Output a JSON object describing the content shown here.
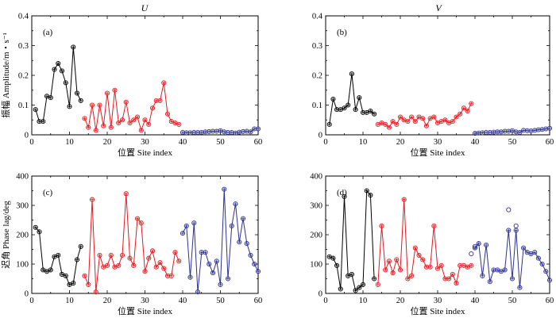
{
  "figure": {
    "column_titles": [
      "U",
      "V"
    ],
    "series_colors": {
      "s1": "#000000",
      "s2": "#e8191f",
      "s3": "#2d3190"
    }
  },
  "chart_data": [
    {
      "type": "line",
      "panel": "(a)",
      "column_title": "U",
      "xlabel": "位置 Site index",
      "ylabel": "振幅 Amplitude/m・s⁻¹",
      "xlim": [
        0,
        60
      ],
      "ylim": [
        0,
        0.4
      ],
      "xticks": [
        0,
        10,
        20,
        30,
        40,
        50,
        60
      ],
      "yticks": [
        0,
        0.1,
        0.2,
        0.3,
        0.4
      ],
      "yticklabels": [
        "0",
        "0.1",
        "0.2",
        "0.3",
        "0.4"
      ],
      "series": [
        {
          "x": [
            1,
            2,
            3,
            4,
            5,
            6,
            7,
            8,
            9,
            10,
            11,
            12,
            13
          ],
          "y": [
            0.085,
            0.045,
            0.045,
            0.13,
            0.125,
            0.22,
            0.24,
            0.215,
            0.175,
            0.095,
            0.295,
            0.14,
            0.115
          ]
        },
        {
          "x": [
            14,
            15,
            16,
            17,
            18,
            19,
            20,
            21,
            22,
            23,
            24,
            25,
            26,
            27,
            28,
            29,
            30,
            31,
            32,
            33,
            34,
            35,
            36,
            37,
            38,
            39
          ],
          "y": [
            0.055,
            0.025,
            0.1,
            0.015,
            0.1,
            0.03,
            0.14,
            0.025,
            0.15,
            0.04,
            0.05,
            0.11,
            0.04,
            0.05,
            0.06,
            0.015,
            0.05,
            0.035,
            0.09,
            0.115,
            0.115,
            0.175,
            0.07,
            0.045,
            0.04,
            0.035
          ]
        },
        {
          "x": [
            40,
            41,
            42,
            43,
            44,
            45,
            46,
            47,
            48,
            49,
            50,
            51,
            52,
            53,
            54,
            55,
            56,
            57,
            58,
            59,
            60
          ],
          "y": [
            0.008,
            0.007,
            0.007,
            0.008,
            0.008,
            0.008,
            0.01,
            0.011,
            0.012,
            0.012,
            0.014,
            0.01,
            0.008,
            0.008,
            0.006,
            0.009,
            0.011,
            0.012,
            0.01,
            0.02,
            0.02
          ]
        }
      ]
    },
    {
      "type": "line",
      "panel": "(b)",
      "column_title": "V",
      "xlabel": "位置 Site index",
      "ylabel": "",
      "xlim": [
        0,
        60
      ],
      "ylim": [
        0,
        0.4
      ],
      "xticks": [
        0,
        10,
        20,
        30,
        40,
        50,
        60
      ],
      "yticks": [
        0,
        0.1,
        0.2,
        0.3,
        0.4
      ],
      "yticklabels": [
        "0",
        "0.1",
        "0.2",
        "0.3",
        "0.4"
      ],
      "series": [
        {
          "x": [
            1,
            2,
            3,
            4,
            5,
            6,
            7,
            8,
            9,
            10,
            11,
            12,
            13
          ],
          "y": [
            0.035,
            0.12,
            0.085,
            0.085,
            0.09,
            0.1,
            0.205,
            0.085,
            0.125,
            0.075,
            0.075,
            0.08,
            0.07
          ]
        },
        {
          "x": [
            14,
            15,
            16,
            17,
            18,
            19,
            20,
            21,
            22,
            23,
            24,
            25,
            26,
            27,
            28,
            29,
            30,
            31,
            32,
            33,
            34,
            35,
            36,
            37,
            38,
            39
          ],
          "y": [
            0.035,
            0.04,
            0.035,
            0.025,
            0.045,
            0.035,
            0.06,
            0.05,
            0.045,
            0.06,
            0.045,
            0.06,
            0.055,
            0.03,
            0.055,
            0.06,
            0.04,
            0.045,
            0.05,
            0.04,
            0.045,
            0.06,
            0.07,
            0.09,
            0.08,
            0.105
          ]
        },
        {
          "x": [
            40,
            41,
            42,
            43,
            44,
            45,
            46,
            47,
            48,
            49,
            50,
            51,
            52,
            53,
            54,
            55,
            56,
            57,
            58,
            59,
            60
          ],
          "y": [
            0.005,
            0.006,
            0.007,
            0.008,
            0.008,
            0.009,
            0.01,
            0.01,
            0.012,
            0.012,
            0.014,
            0.01,
            0.008,
            0.015,
            0.014,
            0.013,
            0.015,
            0.017,
            0.018,
            0.02,
            0.022
          ]
        }
      ]
    },
    {
      "type": "line",
      "panel": "(c)",
      "xlabel": "位置 Site index",
      "ylabel": "迟角 Phase lag/deg",
      "xlim": [
        0,
        60
      ],
      "ylim": [
        0,
        400
      ],
      "xticks": [
        0,
        10,
        20,
        30,
        40,
        50,
        60
      ],
      "yticks": [
        0,
        100,
        200,
        300,
        400
      ],
      "yticklabels": [
        "0",
        "100",
        "200",
        "300",
        "400"
      ],
      "series": [
        {
          "x": [
            1,
            2,
            3,
            4,
            5,
            6,
            7,
            8,
            9,
            10,
            11,
            12,
            13
          ],
          "y": [
            225,
            210,
            80,
            75,
            80,
            125,
            130,
            65,
            60,
            30,
            35,
            115,
            160
          ]
        },
        {
          "x": [
            14,
            15,
            16,
            17,
            18,
            19,
            20,
            21,
            22,
            23,
            24,
            25,
            26,
            27,
            28,
            29,
            30,
            31,
            32,
            33,
            34,
            35,
            36,
            37,
            38,
            39
          ],
          "y": [
            60,
            30,
            320,
            5,
            130,
            90,
            95,
            130,
            90,
            95,
            130,
            340,
            120,
            95,
            255,
            240,
            75,
            120,
            145,
            90,
            105,
            85,
            60,
            60,
            140,
            110
          ]
        },
        {
          "x": [
            40,
            41,
            42,
            43,
            44,
            45,
            46,
            47,
            48,
            49,
            50,
            51,
            52,
            53,
            54,
            55,
            56,
            57,
            58,
            59,
            60
          ],
          "y": [
            205,
            230,
            55,
            240,
            5,
            140,
            140,
            100,
            70,
            110,
            30,
            355,
            50,
            230,
            305,
            175,
            255,
            170,
            130,
            100,
            75
          ]
        }
      ]
    },
    {
      "type": "line",
      "panel": "(d)",
      "xlabel": "位置 Site index",
      "ylabel": "",
      "xlim": [
        0,
        60
      ],
      "ylim": [
        0,
        400
      ],
      "xticks": [
        0,
        10,
        20,
        30,
        40,
        50,
        60
      ],
      "yticks": [
        0,
        100,
        200,
        300,
        400
      ],
      "yticklabels": [
        "0",
        "100",
        "200",
        "300",
        "400"
      ],
      "series": [
        {
          "x": [
            1,
            2,
            3,
            4,
            5,
            6,
            7,
            8,
            9,
            10,
            11,
            12,
            13
          ],
          "y": [
            125,
            120,
            95,
            15,
            330,
            60,
            65,
            10,
            20,
            30,
            350,
            335,
            50
          ]
        },
        {
          "x": [
            14,
            15,
            16,
            17,
            18,
            19,
            20,
            21,
            22,
            23,
            24,
            25,
            26,
            27,
            28,
            29,
            30,
            31,
            32,
            33,
            34,
            35,
            36,
            37,
            38,
            39
          ],
          "y": [
            30,
            230,
            80,
            110,
            70,
            115,
            80,
            320,
            50,
            60,
            155,
            130,
            115,
            90,
            90,
            230,
            85,
            95,
            50,
            50,
            65,
            35,
            95,
            95,
            90,
            95
          ]
        },
        {
          "x": [
            40,
            41,
            42,
            43,
            44,
            45,
            46,
            47,
            48,
            49,
            50,
            51,
            52,
            53,
            54,
            55,
            56,
            57,
            58,
            59,
            60
          ],
          "y": [
            155,
            170,
            60,
            165,
            40,
            80,
            80,
            75,
            80,
            215,
            50,
            215,
            20,
            155,
            140,
            135,
            140,
            120,
            100,
            75,
            45
          ]
        },
        {
          "x": [
            39,
            40,
            49,
            51
          ],
          "y": [
            135,
            160,
            285,
            230
          ],
          "markers_only": true
        }
      ]
    }
  ]
}
